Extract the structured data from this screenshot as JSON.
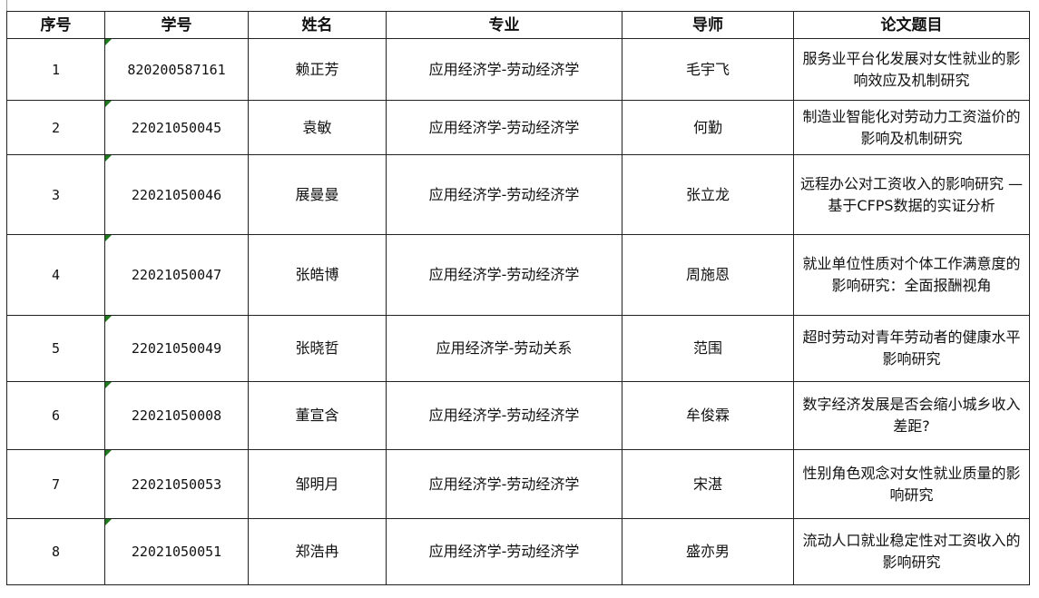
{
  "table": {
    "headers": [
      "序号",
      "学号",
      "姓名",
      "专业",
      "导师",
      "论文题目"
    ],
    "rows": [
      {
        "index": "1",
        "student_id": "820200587161",
        "name": "赖正芳",
        "major": "应用经济学-劳动经济学",
        "advisor": "毛宇飞",
        "title": "服务业平台化发展对女性就业的影响效应及机制研究"
      },
      {
        "index": "2",
        "student_id": "22021050045",
        "name": "袁敏",
        "major": "应用经济学-劳动经济学",
        "advisor": "何勤",
        "title": "制造业智能化对劳动力工资溢价的影响及机制研究"
      },
      {
        "index": "3",
        "student_id": "22021050046",
        "name": "展曼曼",
        "major": "应用经济学-劳动经济学",
        "advisor": "张立龙",
        "title": "远程办公对工资收入的影响研究 —基于CFPS数据的实证分析"
      },
      {
        "index": "4",
        "student_id": "22021050047",
        "name": "张皓博",
        "major": "应用经济学-劳动经济学",
        "advisor": "周施恩",
        "title": "就业单位性质对个体工作满意度的影响研究：全面报酬视角"
      },
      {
        "index": "5",
        "student_id": "22021050049",
        "name": "张晓哲",
        "major": "应用经济学-劳动关系",
        "advisor": "范围",
        "title": "超时劳动对青年劳动者的健康水平影响研究"
      },
      {
        "index": "6",
        "student_id": "22021050008",
        "name": "董宣含",
        "major": "应用经济学-劳动经济学",
        "advisor": "牟俊霖",
        "title": "数字经济发展是否会缩小城乡收入差距?"
      },
      {
        "index": "7",
        "student_id": "22021050053",
        "name": "邹明月",
        "major": "应用经济学-劳动经济学",
        "advisor": "宋湛",
        "title": "性别角色观念对女性就业质量的影响研究"
      },
      {
        "index": "8",
        "student_id": "22021050051",
        "name": "郑浩冉",
        "major": "应用经济学-劳动经济学",
        "advisor": "盛亦男",
        "title": "流动人口就业稳定性对工资收入的影响研究"
      }
    ]
  },
  "colors": {
    "border": "#222222",
    "text_as_number_marker": "#1f7a1f"
  }
}
